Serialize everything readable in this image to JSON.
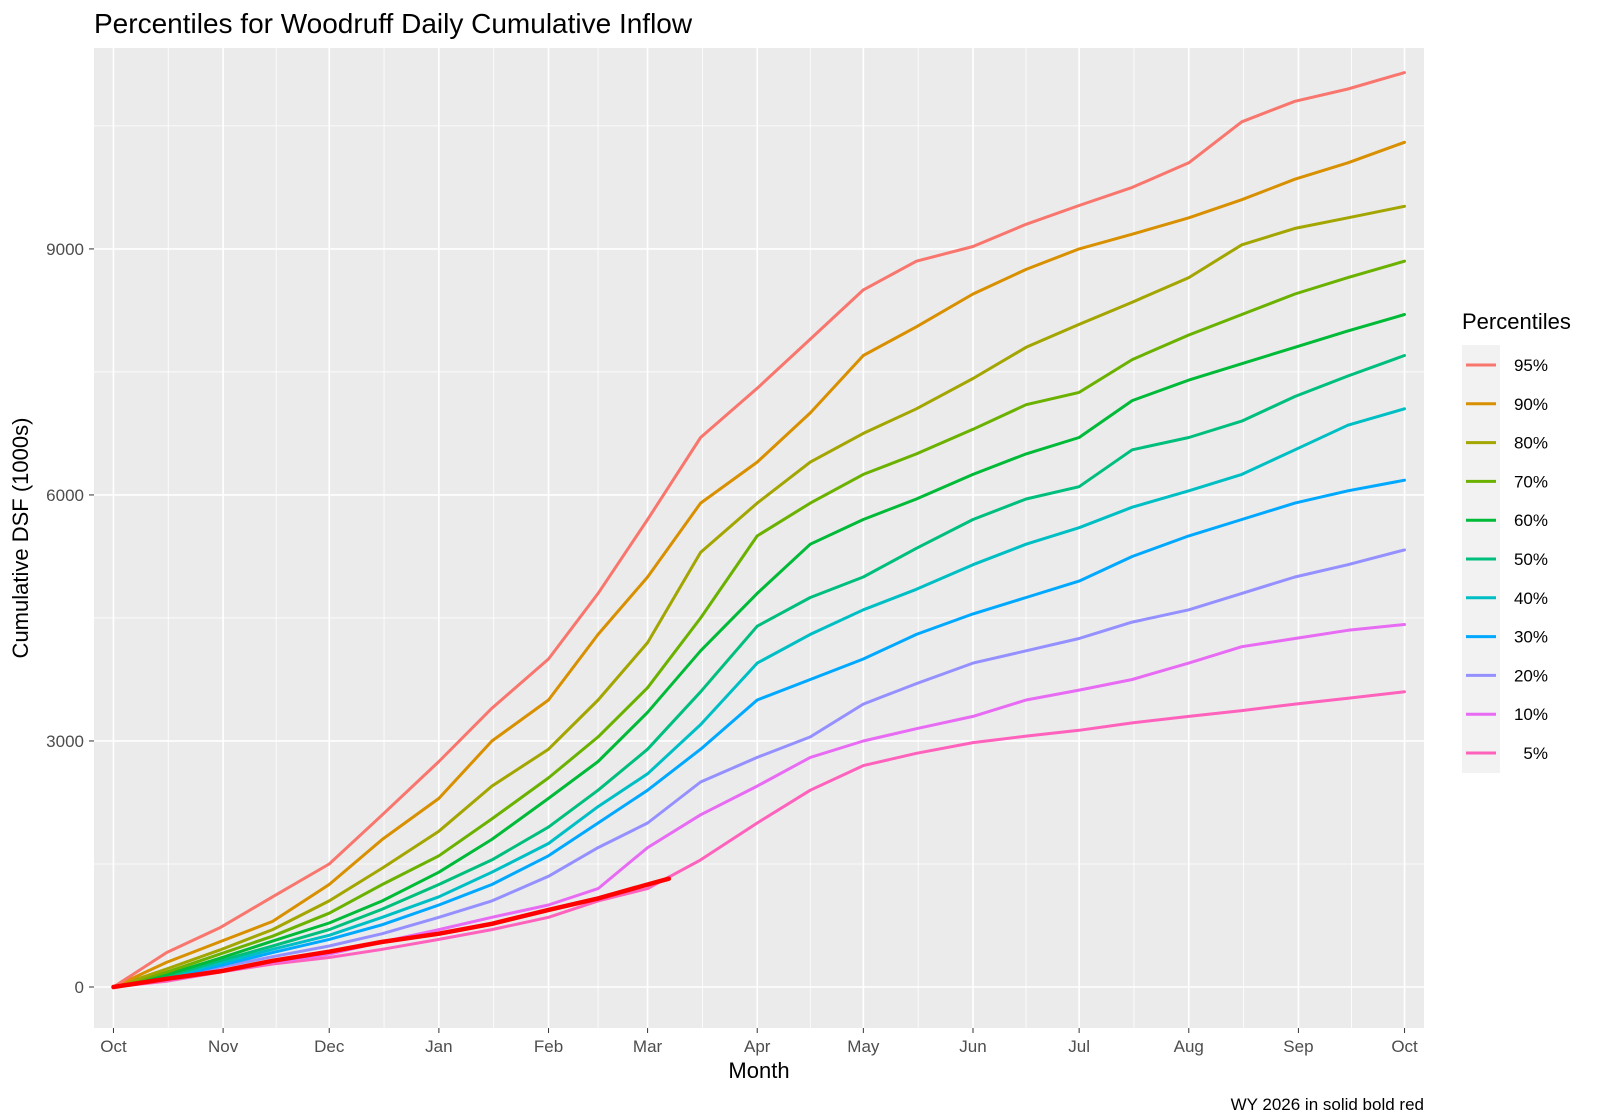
{
  "chart_data": {
    "type": "line",
    "title": "Percentiles for Woodruff Daily Cumulative Inflow",
    "xlabel": "Month",
    "ylabel": "Cumulative DSF (1000s)",
    "caption": "WY 2026 in solid  bold red",
    "x_ticks": [
      "Oct",
      "Nov",
      "Dec",
      "Jan",
      "Feb",
      "Mar",
      "Apr",
      "May",
      "Jun",
      "Jul",
      "Aug",
      "Sep",
      "Oct"
    ],
    "y_ticks": [
      0,
      3000,
      6000,
      9000
    ],
    "ylim": [
      -500,
      11450
    ],
    "xlim_days": [
      -5.5,
      370.5
    ],
    "x_unit": "days since Oct 1",
    "legend_title": "Percentiles",
    "legend_position": "right",
    "background": "#ebebeb",
    "grid": true,
    "series": [
      {
        "name": "95%",
        "color": "#F8766D",
        "x": [
          0,
          15,
          30,
          45,
          61,
          76,
          92,
          107,
          123,
          137,
          151,
          166,
          182,
          197,
          212,
          227,
          243,
          258,
          273,
          288,
          304,
          319,
          334,
          349,
          365
        ],
        "values": [
          0,
          420,
          720,
          1100,
          1500,
          2100,
          2750,
          3400,
          4000,
          4800,
          5700,
          6700,
          7300,
          7900,
          8500,
          8850,
          9030,
          9300,
          9530,
          9750,
          10050,
          10550,
          10800,
          10950,
          11150
        ]
      },
      {
        "name": "90%",
        "color": "#D89000",
        "x": [
          0,
          15,
          30,
          45,
          61,
          76,
          92,
          107,
          123,
          137,
          151,
          166,
          182,
          197,
          212,
          227,
          243,
          258,
          273,
          288,
          304,
          319,
          334,
          349,
          365
        ],
        "values": [
          0,
          300,
          550,
          800,
          1250,
          1800,
          2300,
          3000,
          3500,
          4300,
          5000,
          5900,
          6400,
          7000,
          7700,
          8050,
          8450,
          8750,
          9000,
          9180,
          9380,
          9600,
          9850,
          10050,
          10300
        ]
      },
      {
        "name": "80%",
        "color": "#A3A500",
        "x": [
          0,
          15,
          30,
          45,
          61,
          76,
          92,
          107,
          123,
          137,
          151,
          166,
          182,
          197,
          212,
          227,
          243,
          258,
          273,
          288,
          304,
          319,
          334,
          349,
          365
        ],
        "values": [
          0,
          220,
          450,
          700,
          1050,
          1450,
          1900,
          2450,
          2900,
          3500,
          4200,
          5300,
          5900,
          6400,
          6750,
          7050,
          7420,
          7800,
          8080,
          8350,
          8650,
          9050,
          9250,
          9380,
          9520
        ]
      },
      {
        "name": "70%",
        "color": "#6BB100",
        "x": [
          0,
          15,
          30,
          45,
          61,
          76,
          92,
          107,
          123,
          137,
          151,
          166,
          182,
          197,
          212,
          227,
          243,
          258,
          273,
          288,
          304,
          319,
          334,
          349,
          365
        ],
        "values": [
          0,
          180,
          400,
          620,
          900,
          1250,
          1600,
          2050,
          2550,
          3050,
          3650,
          4500,
          5500,
          5900,
          6250,
          6500,
          6800,
          7100,
          7250,
          7650,
          7950,
          8200,
          8450,
          8650,
          8850
        ]
      },
      {
        "name": "60%",
        "color": "#00BA38",
        "x": [
          0,
          15,
          30,
          45,
          61,
          76,
          92,
          107,
          123,
          137,
          151,
          166,
          182,
          197,
          212,
          227,
          243,
          258,
          273,
          288,
          304,
          319,
          334,
          349,
          365
        ],
        "values": [
          0,
          150,
          350,
          560,
          780,
          1050,
          1400,
          1800,
          2300,
          2750,
          3350,
          4100,
          4800,
          5400,
          5700,
          5950,
          6250,
          6500,
          6700,
          7150,
          7400,
          7600,
          7800,
          8000,
          8200
        ]
      },
      {
        "name": "50%",
        "color": "#00BF7D",
        "x": [
          0,
          15,
          30,
          45,
          61,
          76,
          92,
          107,
          123,
          137,
          151,
          166,
          182,
          197,
          212,
          227,
          243,
          258,
          273,
          288,
          304,
          319,
          334,
          349,
          365
        ],
        "values": [
          0,
          130,
          320,
          500,
          700,
          950,
          1250,
          1550,
          1950,
          2400,
          2900,
          3600,
          4400,
          4750,
          5000,
          5350,
          5700,
          5950,
          6100,
          6550,
          6700,
          6900,
          7200,
          7450,
          7700
        ]
      },
      {
        "name": "40%",
        "color": "#00BFC4",
        "x": [
          0,
          15,
          30,
          45,
          61,
          76,
          92,
          107,
          123,
          137,
          151,
          166,
          182,
          197,
          212,
          227,
          243,
          258,
          273,
          288,
          304,
          319,
          334,
          349,
          365
        ],
        "values": [
          0,
          120,
          290,
          460,
          630,
          850,
          1100,
          1400,
          1750,
          2200,
          2600,
          3200,
          3950,
          4300,
          4600,
          4850,
          5150,
          5400,
          5600,
          5850,
          6050,
          6250,
          6550,
          6850,
          7050
        ]
      },
      {
        "name": "30%",
        "color": "#00A9FF",
        "x": [
          0,
          15,
          30,
          45,
          61,
          76,
          92,
          107,
          123,
          137,
          151,
          166,
          182,
          197,
          212,
          227,
          243,
          258,
          273,
          288,
          304,
          319,
          334,
          349,
          365
        ],
        "values": [
          0,
          110,
          260,
          420,
          580,
          760,
          1000,
          1250,
          1600,
          2000,
          2400,
          2900,
          3500,
          3750,
          4000,
          4300,
          4550,
          4750,
          4950,
          5250,
          5500,
          5700,
          5900,
          6050,
          6180
        ]
      },
      {
        "name": "20%",
        "color": "#9590FF",
        "x": [
          0,
          15,
          30,
          45,
          61,
          76,
          92,
          107,
          123,
          137,
          151,
          166,
          182,
          197,
          212,
          227,
          243,
          258,
          273,
          288,
          304,
          319,
          334,
          349,
          365
        ],
        "values": [
          0,
          100,
          240,
          370,
          500,
          650,
          850,
          1050,
          1350,
          1700,
          2000,
          2500,
          2800,
          3050,
          3450,
          3700,
          3950,
          4100,
          4250,
          4450,
          4600,
          4800,
          5000,
          5150,
          5330
        ]
      },
      {
        "name": "10%",
        "color": "#E76BF3",
        "x": [
          0,
          15,
          30,
          45,
          61,
          76,
          92,
          107,
          123,
          137,
          151,
          166,
          182,
          197,
          212,
          227,
          243,
          258,
          273,
          288,
          304,
          319,
          334,
          349,
          365
        ],
        "values": [
          0,
          90,
          200,
          300,
          400,
          550,
          700,
          850,
          1000,
          1200,
          1700,
          2100,
          2450,
          2800,
          3000,
          3150,
          3300,
          3500,
          3620,
          3750,
          3950,
          4150,
          4250,
          4350,
          4420
        ]
      },
      {
        "name": "5%",
        "color": "#FF62BC",
        "x": [
          0,
          15,
          30,
          45,
          61,
          76,
          92,
          107,
          123,
          137,
          151,
          166,
          182,
          197,
          212,
          227,
          243,
          258,
          273,
          288,
          304,
          319,
          334,
          349,
          365
        ],
        "values": [
          0,
          70,
          180,
          280,
          360,
          460,
          580,
          700,
          850,
          1050,
          1200,
          1550,
          2000,
          2400,
          2700,
          2850,
          2980,
          3060,
          3130,
          3220,
          3300,
          3370,
          3450,
          3520,
          3600
        ]
      },
      {
        "name": "WY 2026",
        "color": "#FF0000",
        "bold": true,
        "x": [
          0,
          15,
          30,
          45,
          61,
          76,
          92,
          107,
          123,
          137,
          151,
          157
        ],
        "values": [
          0,
          100,
          190,
          320,
          430,
          550,
          650,
          770,
          940,
          1080,
          1250,
          1320
        ]
      }
    ]
  }
}
